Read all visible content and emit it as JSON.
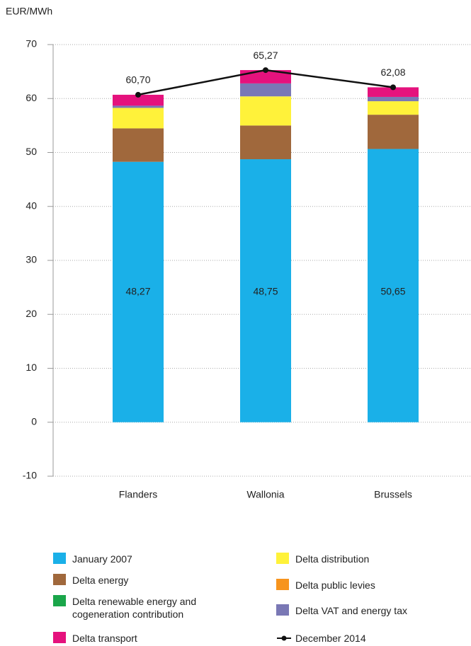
{
  "chart_data": {
    "type": "stacked-bar-line",
    "y_label": "EUR/MWh",
    "categories": [
      "Flanders",
      "Wallonia",
      "Brussels"
    ],
    "ylim": [
      -10,
      70
    ],
    "yticks": [
      -10,
      0,
      10,
      20,
      30,
      40,
      50,
      60,
      70
    ],
    "grid": true,
    "series": [
      {
        "name": "January  2007",
        "color": "#1ab0e8",
        "values": [
          48.27,
          48.75,
          50.65
        ],
        "value_labels": [
          "48,27",
          "48,75",
          "50,65"
        ]
      },
      {
        "name": "Delta energy",
        "color": "#a0683c",
        "values": [
          6.2,
          6.25,
          6.35
        ]
      },
      {
        "name": "Delta renewable energy and cogeneration contribution",
        "color": "#1aa64a",
        "values": [
          0,
          0,
          0
        ]
      },
      {
        "name": "Delta distribution",
        "color": "#fff23a",
        "values": [
          3.8,
          5.4,
          2.5
        ]
      },
      {
        "name": "Delta public levies",
        "color": "#f7941d",
        "values": [
          0,
          0,
          0
        ]
      },
      {
        "name": "Delta VAT and energy tax",
        "color": "#7a78b5",
        "values": [
          0.4,
          2.4,
          0.8
        ]
      },
      {
        "name": "Delta transport",
        "color": "#e5127d",
        "values": [
          2.03,
          2.47,
          1.78
        ]
      }
    ],
    "line": {
      "name": "December 2014",
      "color": "#111111",
      "values": [
        60.7,
        65.27,
        62.08
      ],
      "value_labels": [
        "60,70",
        "65,27",
        "62,08"
      ]
    }
  }
}
